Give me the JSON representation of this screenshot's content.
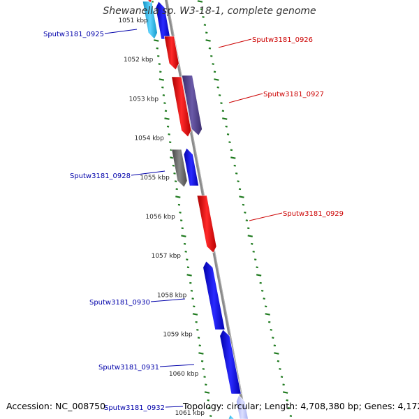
{
  "title": "Shewanella sp. W3-18-1, complete genome",
  "footer": {
    "accession": "Accession: NC_008750",
    "summary": "Topology: circular; Length: 4,708,380 bp; Genes: 4,172"
  },
  "colors": {
    "backbone": "#8c8c8c",
    "ticks": "#1e7a1e",
    "forward_label": "#cc0000",
    "reverse_label": "#0000aa",
    "gene_red": "#ee1111",
    "gene_blue": "#1010ee",
    "gene_purple": "#55428f",
    "gene_gray": "#666666",
    "gene_cyan": "#27b8e8"
  },
  "kbp_labels": [
    "1051 kbp",
    "1052 kbp",
    "1053 kbp",
    "1054 kbp",
    "1055 kbp",
    "1056 kbp",
    "1057 kbp",
    "1058 kbp",
    "1059 kbp",
    "1060 kbp",
    "1061 kbp"
  ],
  "gene_labels": [
    {
      "id": "Sputw3181_0925",
      "strand": "reverse"
    },
    {
      "id": "Sputw3181_0926",
      "strand": "forward"
    },
    {
      "id": "Sputw3181_0927",
      "strand": "forward"
    },
    {
      "id": "Sputw3181_0928",
      "strand": "reverse"
    },
    {
      "id": "Sputw3181_0929",
      "strand": "forward"
    },
    {
      "id": "Sputw3181_0930",
      "strand": "reverse"
    },
    {
      "id": "Sputw3181_0931",
      "strand": "reverse"
    },
    {
      "id": "Sputw3181_0932",
      "strand": "reverse"
    }
  ]
}
